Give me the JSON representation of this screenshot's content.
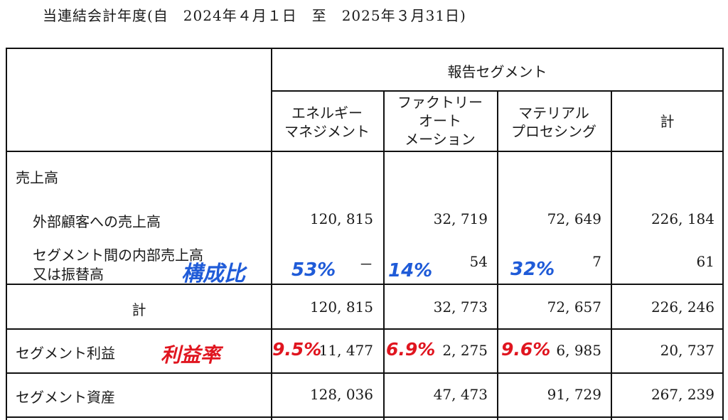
{
  "title": "当連結会計年度(自　2024年４月１日　至　2025年３月31日)",
  "header": {
    "group": "報告セグメント",
    "columns": [
      "エネルギー\nマネジメント",
      "ファクトリー\nオート\nメーション",
      "マテリアル\nプロセシング",
      "計"
    ]
  },
  "rows": {
    "sales_heading": "売上高",
    "external": {
      "label": "外部顧客への売上高",
      "values": [
        "120, 815",
        "32, 719",
        "72, 649",
        "226, 184"
      ]
    },
    "intersegment": {
      "label_line1": "セグメント間の内部売上高",
      "label_line2": "又は振替高",
      "values": [
        "－",
        "54",
        "7",
        "61"
      ]
    },
    "total": {
      "label": "計",
      "values": [
        "120, 815",
        "32, 773",
        "72, 657",
        "226, 246"
      ]
    },
    "profit": {
      "label": "セグメント利益",
      "values": [
        "11, 477",
        "2, 275",
        "6, 985",
        "20, 737"
      ]
    },
    "assets": {
      "label": "セグメント資産",
      "values": [
        "128, 036",
        "47, 473",
        "91, 729",
        "267, 239"
      ]
    }
  },
  "annotations": {
    "composition_label": "構成比",
    "composition_values": [
      "53%",
      "14%",
      "32%"
    ],
    "margin_label": "利益率",
    "margin_values": [
      "9.5%",
      "6.9%",
      "9.6%"
    ],
    "composition_color": "#1f5bd8",
    "margin_color": "#e0151f"
  }
}
